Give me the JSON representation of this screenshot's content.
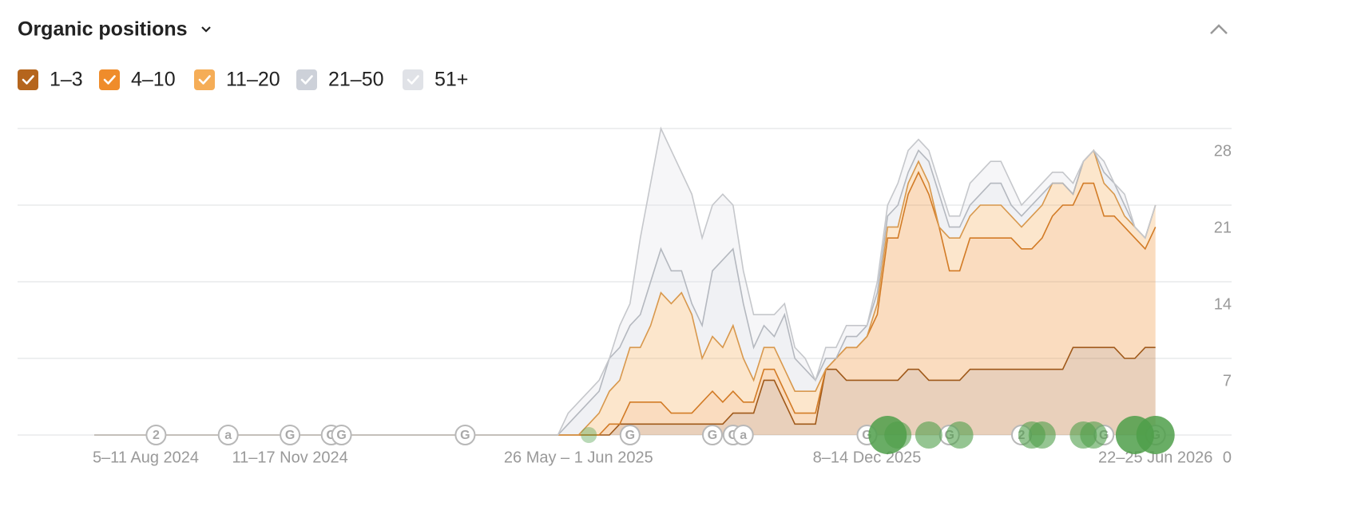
{
  "header": {
    "title": "Organic positions"
  },
  "chart_data": {
    "type": "stacked-area",
    "categories": [
      null,
      null,
      null,
      null,
      null,
      "5–11 Aug 2024",
      null,
      null,
      null,
      null,
      null,
      null,
      null,
      null,
      null,
      null,
      null,
      null,
      null,
      "11–17 Nov 2024",
      null,
      null,
      null,
      null,
      null,
      null,
      null,
      null,
      null,
      null,
      null,
      null,
      null,
      null,
      null,
      null,
      null,
      null,
      null,
      null,
      null,
      null,
      null,
      null,
      null,
      null,
      null,
      "26 May – 1 Jun 2025",
      null,
      null,
      null,
      null,
      null,
      null,
      null,
      null,
      null,
      null,
      null,
      null,
      null,
      null,
      null,
      null,
      null,
      null,
      null,
      null,
      null,
      null,
      null,
      null,
      null,
      null,
      null,
      "8–14 Dec 2025",
      null,
      null,
      null,
      null,
      null,
      null,
      null,
      null,
      null,
      null,
      null,
      null,
      null,
      null,
      null,
      null,
      null,
      null,
      null,
      null,
      null,
      null,
      null,
      null,
      null,
      null,
      null,
      "22–25 Jun 2026"
    ],
    "series": [
      {
        "name": "1–3",
        "color": "#b5651d",
        "values": [
          0,
          0,
          0,
          0,
          0,
          0,
          0,
          0,
          0,
          0,
          0,
          0,
          0,
          0,
          0,
          0,
          0,
          0,
          0,
          0,
          0,
          0,
          0,
          0,
          0,
          0,
          0,
          0,
          0,
          0,
          0,
          0,
          0,
          0,
          0,
          0,
          0,
          0,
          0,
          0,
          0,
          0,
          0,
          0,
          0,
          0,
          0,
          0,
          0,
          0,
          0,
          1,
          1,
          1,
          1,
          1,
          1,
          1,
          1,
          1,
          1,
          1,
          2,
          2,
          2,
          5,
          5,
          3,
          1,
          1,
          1,
          6,
          6,
          5,
          5,
          5,
          5,
          5,
          5,
          6,
          6,
          5,
          5,
          5,
          5,
          6,
          6,
          6,
          6,
          6,
          6,
          6,
          6,
          6,
          6,
          8,
          8,
          8,
          8,
          8,
          7,
          7,
          8,
          8
        ]
      },
      {
        "name": "4–10",
        "color": "#ef8c2b",
        "values": [
          0,
          0,
          0,
          0,
          0,
          0,
          0,
          0,
          0,
          0,
          0,
          0,
          0,
          0,
          0,
          0,
          0,
          0,
          0,
          0,
          0,
          0,
          0,
          0,
          0,
          0,
          0,
          0,
          0,
          0,
          0,
          0,
          0,
          0,
          0,
          0,
          0,
          0,
          0,
          0,
          0,
          0,
          0,
          0,
          0,
          0,
          0,
          0,
          0,
          0,
          1,
          0,
          2,
          2,
          2,
          2,
          1,
          1,
          1,
          2,
          3,
          2,
          2,
          1,
          1,
          1,
          1,
          1,
          1,
          1,
          1,
          0,
          1,
          3,
          3,
          4,
          6,
          13,
          13,
          16,
          18,
          17,
          14,
          10,
          10,
          12,
          12,
          12,
          12,
          12,
          11,
          11,
          12,
          14,
          15,
          13,
          15,
          15,
          12,
          12,
          12,
          11,
          9,
          11
        ]
      },
      {
        "name": "11–20",
        "color": "#f5ad57",
        "values": [
          0,
          0,
          0,
          0,
          0,
          0,
          0,
          0,
          0,
          0,
          0,
          0,
          0,
          0,
          0,
          0,
          0,
          0,
          0,
          0,
          0,
          0,
          0,
          0,
          0,
          0,
          0,
          0,
          0,
          0,
          0,
          0,
          0,
          0,
          0,
          0,
          0,
          0,
          0,
          0,
          0,
          0,
          0,
          0,
          0,
          0,
          0,
          0,
          1,
          2,
          3,
          4,
          5,
          5,
          7,
          10,
          10,
          11,
          9,
          4,
          5,
          5,
          6,
          4,
          2,
          2,
          2,
          2,
          2,
          2,
          2,
          0,
          0,
          0,
          0,
          0,
          1,
          1,
          1,
          1,
          1,
          1,
          0,
          3,
          3,
          2,
          3,
          3,
          3,
          2,
          2,
          3,
          3,
          3,
          2,
          1,
          2,
          3,
          3,
          2,
          1,
          1,
          1,
          2
        ]
      },
      {
        "name": "21–50",
        "color": "#cdd1d9",
        "values": [
          0,
          0,
          0,
          0,
          0,
          0,
          0,
          0,
          0,
          0,
          0,
          0,
          0,
          0,
          0,
          0,
          0,
          0,
          0,
          0,
          0,
          0,
          0,
          0,
          0,
          0,
          0,
          0,
          0,
          0,
          0,
          0,
          0,
          0,
          0,
          0,
          0,
          0,
          0,
          0,
          0,
          0,
          0,
          0,
          0,
          0,
          1,
          2,
          2,
          2,
          3,
          3,
          2,
          3,
          4,
          4,
          3,
          2,
          1,
          3,
          6,
          8,
          7,
          5,
          3,
          2,
          1,
          5,
          3,
          2,
          1,
          1,
          0,
          1,
          1,
          1,
          1,
          1,
          2,
          1,
          1,
          2,
          3,
          1,
          1,
          1,
          1,
          2,
          2,
          1,
          1,
          1,
          1,
          0,
          0,
          0,
          0,
          0,
          1,
          1,
          1,
          0,
          0,
          0
        ]
      },
      {
        "name": "51+",
        "color": "#e0e2e7",
        "values": [
          0,
          0,
          0,
          0,
          0,
          0,
          0,
          0,
          0,
          0,
          0,
          0,
          0,
          0,
          0,
          0,
          0,
          0,
          0,
          0,
          0,
          0,
          0,
          0,
          0,
          0,
          0,
          0,
          0,
          0,
          0,
          0,
          0,
          0,
          0,
          0,
          0,
          0,
          0,
          0,
          0,
          0,
          0,
          0,
          0,
          0,
          1,
          1,
          1,
          1,
          0,
          2,
          2,
          7,
          9,
          11,
          11,
          9,
          10,
          8,
          6,
          6,
          4,
          3,
          3,
          1,
          2,
          1,
          1,
          1,
          0,
          1,
          1,
          1,
          1,
          0,
          1,
          1,
          2,
          2,
          1,
          1,
          1,
          1,
          1,
          2,
          2,
          2,
          2,
          2,
          1,
          1,
          1,
          1,
          1,
          1,
          0,
          0,
          1,
          0,
          1,
          0,
          0,
          0
        ]
      }
    ],
    "ylim": [
      0,
      28
    ],
    "yticks": [
      0,
      7,
      14,
      21,
      28
    ],
    "grid": true,
    "annotations": [
      {
        "label": "2",
        "x": 6
      },
      {
        "label": "a",
        "x": 13
      },
      {
        "label": "G",
        "x": 19
      },
      {
        "label": "G",
        "x": 23
      },
      {
        "label": "G",
        "x": 24
      },
      {
        "label": "G",
        "x": 36
      },
      {
        "label": "G",
        "x": 52
      },
      {
        "label": "G",
        "x": 60
      },
      {
        "label": "G",
        "x": 62
      },
      {
        "label": "a",
        "x": 63
      },
      {
        "label": "G",
        "x": 75
      },
      {
        "label": "G",
        "x": 83
      },
      {
        "label": "2",
        "x": 90
      },
      {
        "label": "G",
        "x": 98
      },
      {
        "label": "G",
        "x": 103
      }
    ],
    "bubble_color": "#4f9f4a",
    "bubbles": [
      {
        "x": 48,
        "size": 1
      },
      {
        "x": 77,
        "size": 3
      },
      {
        "x": 78,
        "size": 2
      },
      {
        "x": 81,
        "size": 2
      },
      {
        "x": 84,
        "size": 2
      },
      {
        "x": 91,
        "size": 2
      },
      {
        "x": 92,
        "size": 2
      },
      {
        "x": 96,
        "size": 2
      },
      {
        "x": 97,
        "size": 2
      },
      {
        "x": 101,
        "size": 3
      },
      {
        "x": 103,
        "size": 3
      }
    ]
  }
}
